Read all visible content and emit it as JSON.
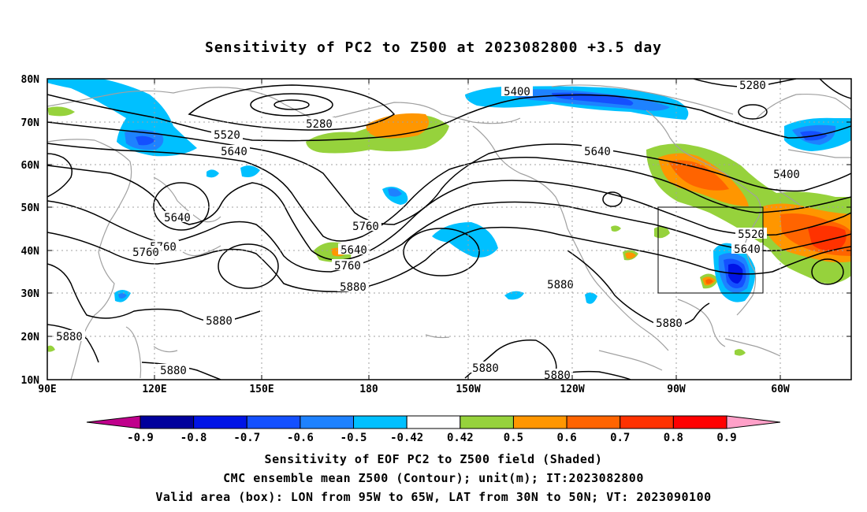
{
  "title": "Sensitivity of PC2 to Z500 at 2023082800 +3.5 day",
  "axes": {
    "lat_labels": [
      "80N",
      "70N",
      "60N",
      "50N",
      "40N",
      "30N",
      "20N",
      "10N"
    ],
    "lon_labels": [
      "90E",
      "120E",
      "150E",
      "180",
      "150W",
      "120W",
      "90W",
      "60W"
    ]
  },
  "contour_labels": [
    "5280",
    "5400",
    "5280",
    "5520",
    "5640",
    "5400",
    "5640",
    "5640",
    "5520",
    "5760",
    "5640",
    "5760",
    "5640",
    "5760",
    "5880",
    "5760",
    "5880",
    "5880",
    "5880",
    "5880",
    "5880",
    "5880",
    "5880"
  ],
  "colorbar": {
    "colors": [
      "#c0008c",
      "#00009c",
      "#0014e6",
      "#1450ff",
      "#1e82ff",
      "#00c0ff",
      "#ffffff",
      "#96d23c",
      "#ff9600",
      "#ff6400",
      "#ff3200",
      "#ff0000",
      "#ffa0c8"
    ],
    "labels": [
      "-0.9",
      "-0.8",
      "-0.7",
      "-0.6",
      "-0.5",
      "-0.42",
      "0.42",
      "0.5",
      "0.6",
      "0.7",
      "0.8",
      "0.9"
    ]
  },
  "valid_box": {
    "lon_min": -95,
    "lon_max": -65,
    "lat_min": 30,
    "lat_max": 50
  },
  "captions": {
    "line1": "Sensitivity of EOF PC2 to Z500 field (Shaded)",
    "line2": "CMC ensemble mean Z500 (Contour); unit(m); IT:2023082800",
    "line3": "Valid area (box): LON from 95W to 65W, LAT from 30N to 50N; VT: 2023090100"
  }
}
